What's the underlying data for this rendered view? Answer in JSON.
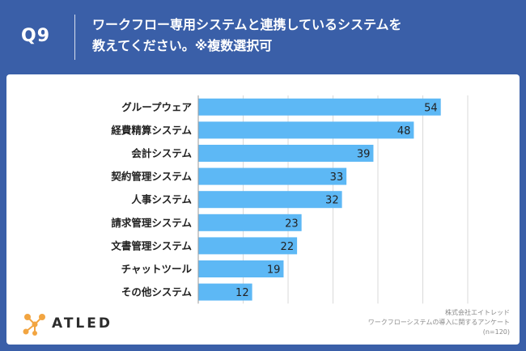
{
  "header": {
    "question_number": "Q9",
    "title_line1": "ワークフロー専用システムと連携しているシステムを",
    "title_line2": "教えてください。※複数選択可"
  },
  "brand": {
    "logo_text": "ATLED"
  },
  "source": {
    "line1": "株式会社エイトレッド",
    "line2": "ワークフローシステムの導入に関するアンケート",
    "line3": "(n=120)"
  },
  "colors": {
    "header_bg": "#3a5fa8",
    "bar": "#5db8f5",
    "logo_accent": "#f2a541"
  },
  "chart_data": {
    "type": "bar",
    "orientation": "horizontal",
    "categories": [
      "グループウェア",
      "経費精算システム",
      "会計システム",
      "契約管理システム",
      "人事システム",
      "請求管理システム",
      "文書管理システム",
      "チャットツール",
      "その他システム"
    ],
    "values": [
      54,
      48,
      39,
      33,
      32,
      23,
      22,
      19,
      12
    ],
    "xlim": [
      0,
      60
    ],
    "grid": true
  }
}
